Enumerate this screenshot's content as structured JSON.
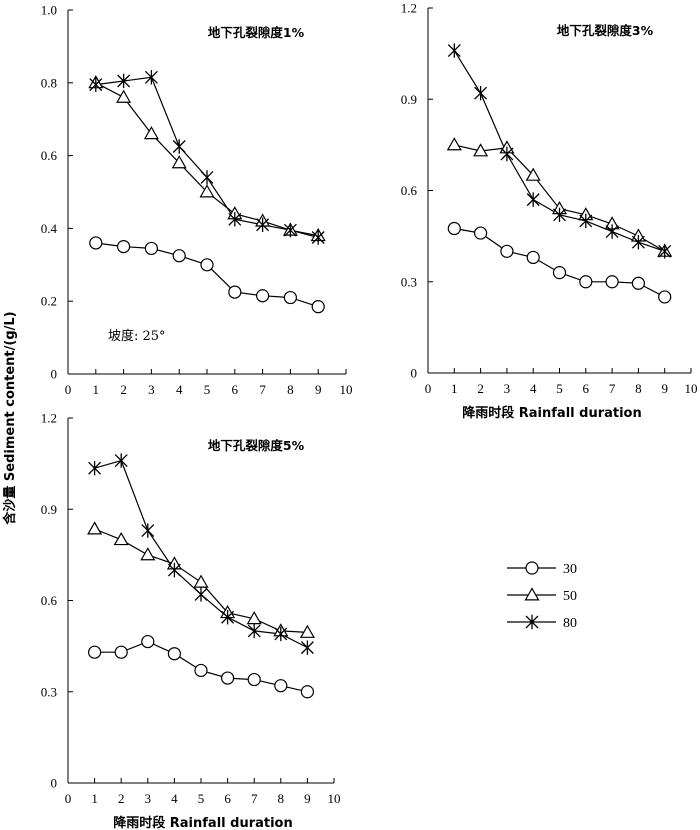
{
  "figure": {
    "ylabel": "含沙量 Sediment content/(g/L)",
    "xlabel": "降雨时段 Rainfall duration",
    "slope_note": "坡度: 25°"
  },
  "legend": {
    "entries": [
      {
        "name": "30",
        "marker": "circle"
      },
      {
        "name": "50",
        "marker": "triangle"
      },
      {
        "name": "80",
        "marker": "asterisk"
      }
    ]
  },
  "colors": {
    "line": "#000000",
    "background": "#ffffff"
  },
  "chart_data": [
    {
      "type": "line",
      "title": "地下孔裂隙度1%",
      "x": [
        1,
        2,
        3,
        4,
        5,
        6,
        7,
        8,
        9
      ],
      "xlim": [
        0,
        10
      ],
      "ylim": [
        0,
        1.0
      ],
      "yticks": [
        "0",
        "0.2",
        "0.4",
        "0.6",
        "0.8",
        "1.0"
      ],
      "xticks": [
        "0",
        "1",
        "2",
        "3",
        "4",
        "5",
        "6",
        "7",
        "8",
        "9",
        "10"
      ],
      "series": [
        {
          "name": "30",
          "marker": "circle",
          "values": [
            0.36,
            0.35,
            0.345,
            0.325,
            0.3,
            0.225,
            0.215,
            0.21,
            0.185
          ]
        },
        {
          "name": "50",
          "marker": "triangle",
          "values": [
            0.8,
            0.76,
            0.66,
            0.58,
            0.5,
            0.44,
            0.42,
            0.395,
            0.38
          ]
        },
        {
          "name": "80",
          "marker": "asterisk",
          "values": [
            0.795,
            0.805,
            0.815,
            0.625,
            0.54,
            0.425,
            0.41,
            0.395,
            0.375
          ]
        }
      ]
    },
    {
      "type": "line",
      "title": "地下孔裂隙度3%",
      "x": [
        1,
        2,
        3,
        4,
        5,
        6,
        7,
        8,
        9
      ],
      "xlim": [
        0,
        10
      ],
      "ylim": [
        0,
        1.2
      ],
      "yticks": [
        "0",
        "0.3",
        "0.6",
        "0.9",
        "1.2"
      ],
      "xticks": [
        "0",
        "1",
        "2",
        "3",
        "4",
        "5",
        "6",
        "7",
        "8",
        "9",
        "10"
      ],
      "series": [
        {
          "name": "30",
          "marker": "circle",
          "values": [
            0.475,
            0.46,
            0.4,
            0.38,
            0.33,
            0.3,
            0.3,
            0.295,
            0.25
          ]
        },
        {
          "name": "50",
          "marker": "triangle",
          "values": [
            0.75,
            0.73,
            0.74,
            0.65,
            0.54,
            0.52,
            0.49,
            0.45,
            0.4
          ]
        },
        {
          "name": "80",
          "marker": "asterisk",
          "values": [
            1.06,
            0.92,
            0.72,
            0.57,
            0.52,
            0.5,
            0.465,
            0.43,
            0.4
          ]
        }
      ]
    },
    {
      "type": "line",
      "title": "地下孔裂隙度5%",
      "x": [
        1,
        2,
        3,
        4,
        5,
        6,
        7,
        8,
        9
      ],
      "xlim": [
        0,
        10
      ],
      "ylim": [
        0,
        1.2
      ],
      "yticks": [
        "0",
        "0.3",
        "0.6",
        "0.9",
        "1.2"
      ],
      "xticks": [
        "0",
        "1",
        "2",
        "3",
        "4",
        "5",
        "6",
        "7",
        "8",
        "9",
        "10"
      ],
      "series": [
        {
          "name": "30",
          "marker": "circle",
          "values": [
            0.43,
            0.43,
            0.465,
            0.425,
            0.37,
            0.345,
            0.34,
            0.32,
            0.3
          ]
        },
        {
          "name": "50",
          "marker": "triangle",
          "values": [
            0.835,
            0.8,
            0.75,
            0.72,
            0.66,
            0.56,
            0.54,
            0.5,
            0.495
          ]
        },
        {
          "name": "80",
          "marker": "asterisk",
          "values": [
            1.035,
            1.06,
            0.83,
            0.7,
            0.62,
            0.545,
            0.5,
            0.49,
            0.445
          ]
        }
      ]
    }
  ]
}
